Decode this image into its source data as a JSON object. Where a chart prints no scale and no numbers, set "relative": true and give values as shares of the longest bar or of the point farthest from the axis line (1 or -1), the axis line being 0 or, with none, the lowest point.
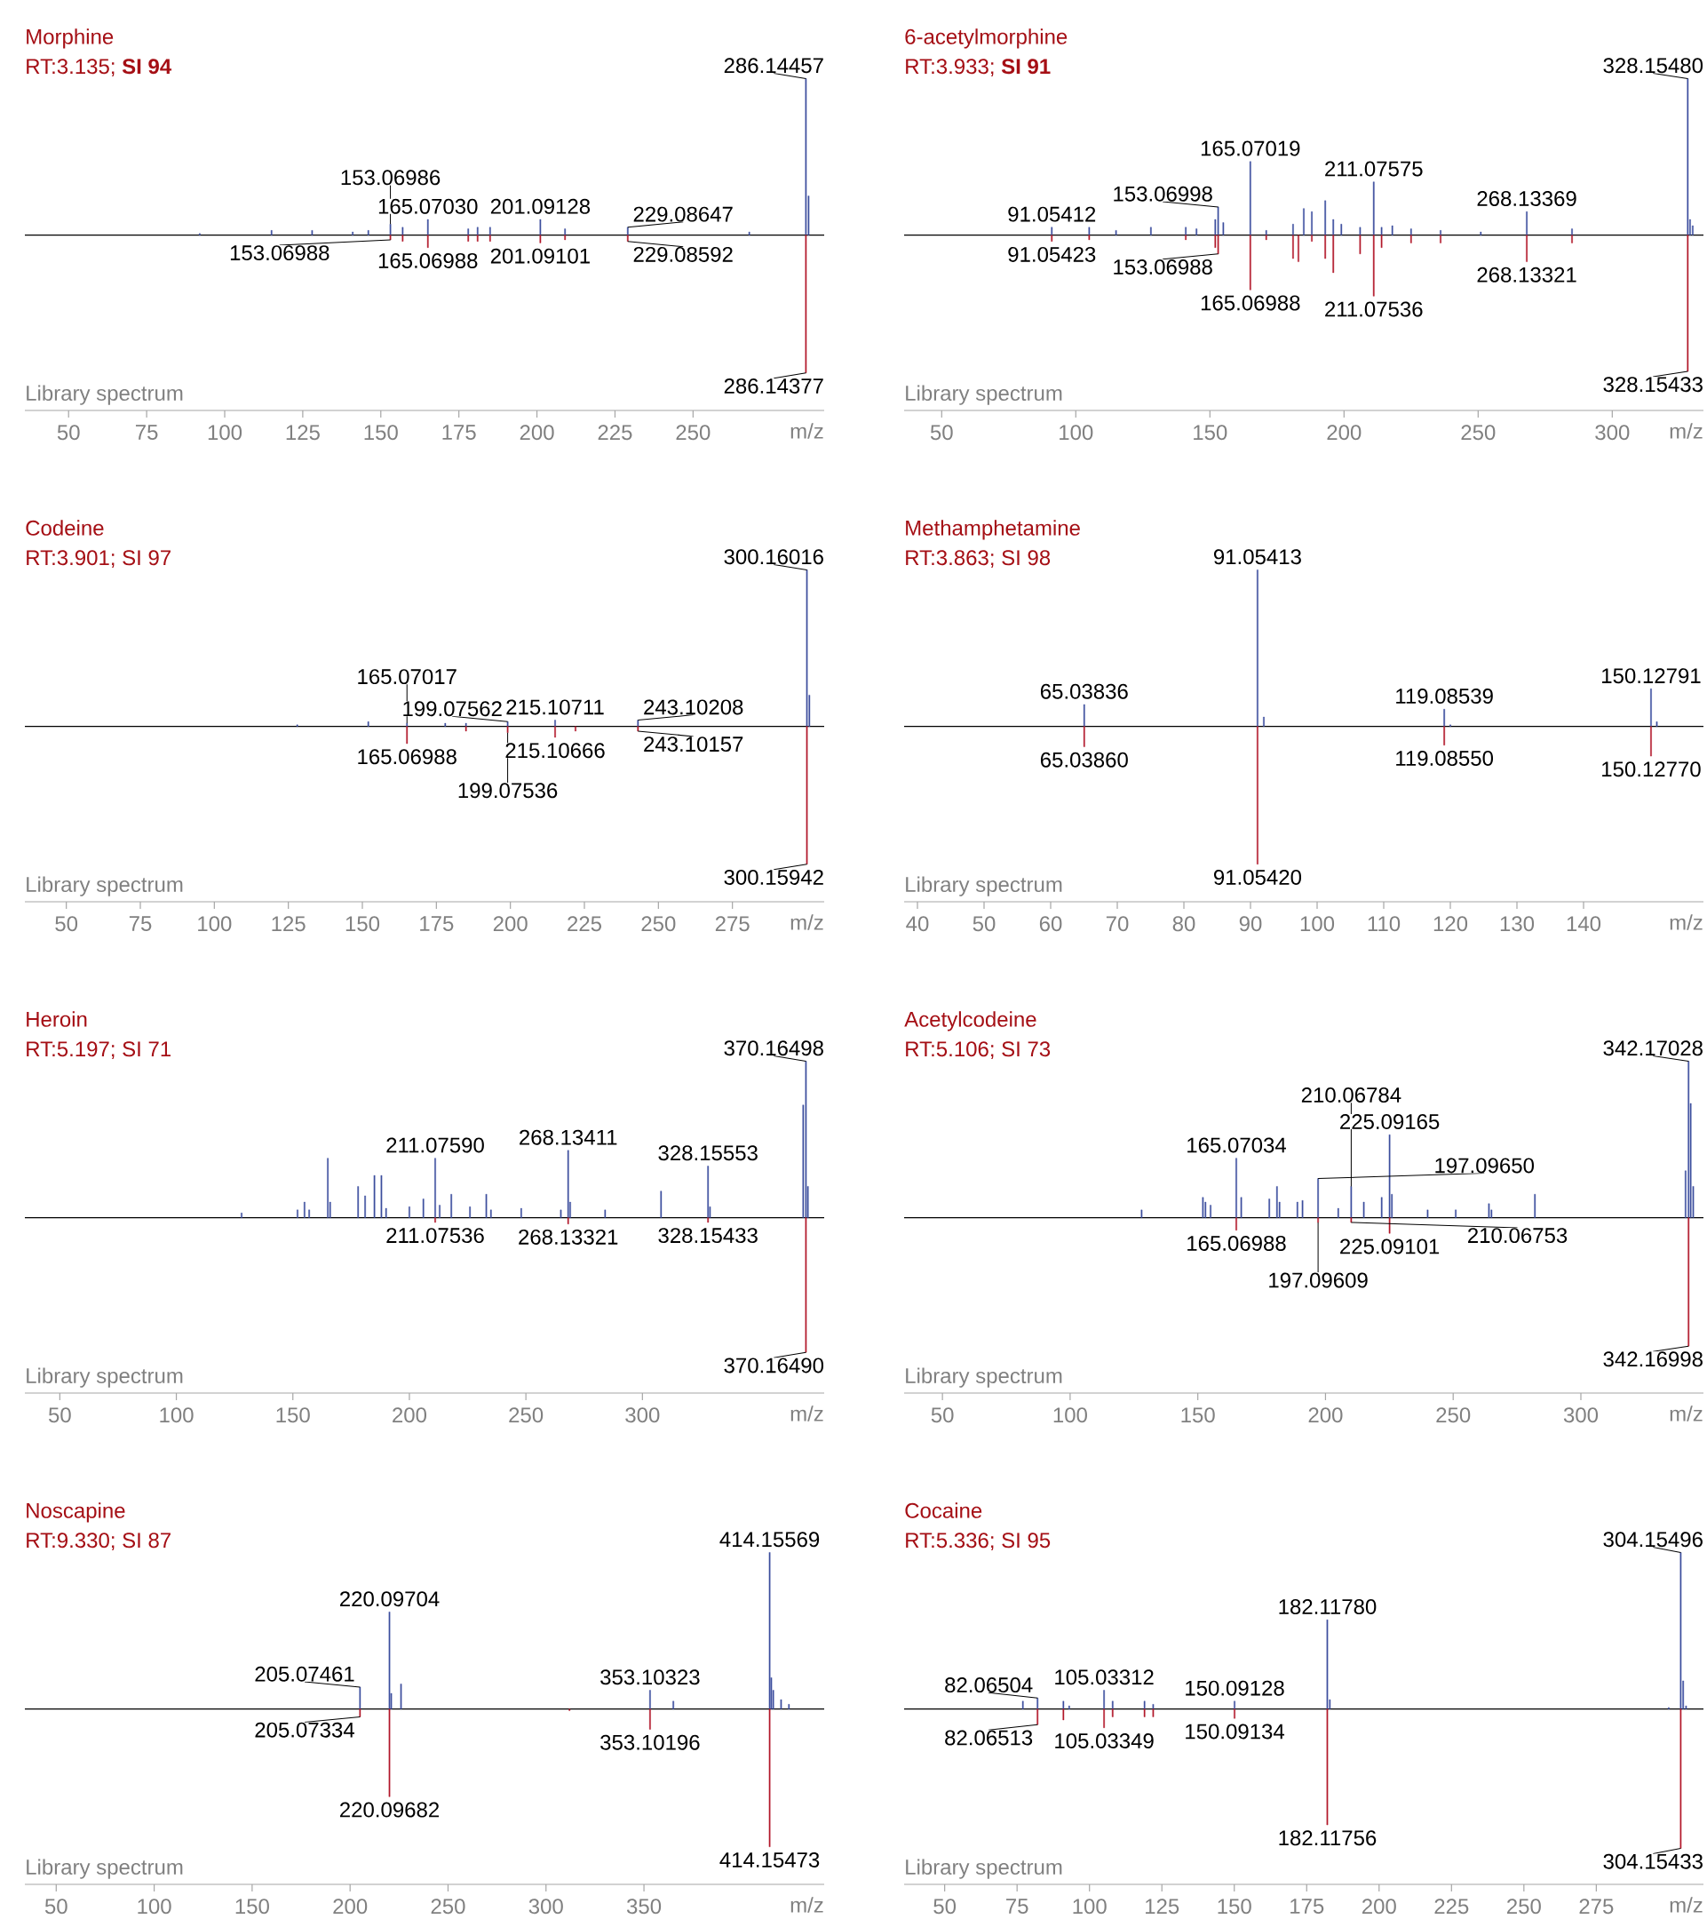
{
  "chart_data": [
    {
      "type": "bar",
      "title": "Morphine",
      "subtitle": "RT:3.135; **SI 94**",
      "xlabel": "m/z",
      "relative": true,
      "xlim": [
        36,
        292
      ],
      "xticks": [
        50,
        75,
        100,
        125,
        150,
        175,
        200,
        225,
        250
      ],
      "series": [
        {
          "color": "#3d4f9e",
          "x": [
            92,
            115,
            128,
            141,
            146,
            153.06986,
            157,
            165.0703,
            178,
            181,
            185,
            201.09128,
            209,
            229.08647,
            268,
            286.14457,
            287
          ],
          "values": [
            0.01,
            0.03,
            0.03,
            0.02,
            0.03,
            0.07,
            0.05,
            0.1,
            0.04,
            0.05,
            0.05,
            0.1,
            0.04,
            0.05,
            0.02,
            1.0,
            0.25
          ]
        },
        {
          "color": "#b2182b",
          "x": [
            153.06988,
            157,
            165.06988,
            178,
            181,
            185,
            201.09101,
            209,
            229.08592,
            286.14377
          ],
          "values": [
            -0.03,
            -0.04,
            -0.08,
            -0.04,
            -0.04,
            -0.04,
            -0.05,
            -0.03,
            -0.04,
            -0.88
          ]
        }
      ],
      "annotations": [
        "Library spectrum",
        {
          "text": "286.14457",
          "x": 286.14457,
          "y": 1.0
        },
        {
          "text": "153.06986",
          "x": 153.06986,
          "y": 0.07
        },
        {
          "text": "165.07030",
          "x": 165.0703,
          "y": 0.1
        },
        {
          "text": "201.09128",
          "x": 201.09128,
          "y": 0.1
        },
        {
          "text": "229.08647",
          "x": 229.08647,
          "y": 0.05
        },
        {
          "text": "153.06988",
          "x": 153.06988,
          "y": -0.03
        },
        {
          "text": "165.06988",
          "x": 165.06988,
          "y": -0.08
        },
        {
          "text": "201.09101",
          "x": 201.09101,
          "y": -0.05
        },
        {
          "text": "229.08592",
          "x": 229.08592,
          "y": -0.04
        },
        {
          "text": "286.14377",
          "x": 286.14377,
          "y": -0.88
        }
      ]
    },
    {
      "type": "bar",
      "title": "6-acetylmorphine",
      "subtitle": "RT:3.933; **SI 91**",
      "xlabel": "m/z",
      "relative": true,
      "xlim": [
        36,
        334
      ],
      "xticks": [
        50,
        100,
        150,
        200,
        250,
        300
      ],
      "series": [
        {
          "color": "#3d4f9e",
          "x": [
            91.05412,
            105,
            115,
            128,
            141,
            145,
            152,
            153.06998,
            155,
            165.07019,
            171,
            181,
            185,
            188,
            193,
            196,
            199,
            206,
            211.07575,
            214,
            218,
            225,
            236,
            251,
            268.13369,
            285,
            328.1548,
            329,
            330
          ],
          "values": [
            0.05,
            0.05,
            0.03,
            0.05,
            0.05,
            0.04,
            0.1,
            0.18,
            0.08,
            0.47,
            0.03,
            0.07,
            0.17,
            0.15,
            0.22,
            0.1,
            0.07,
            0.05,
            0.34,
            0.05,
            0.06,
            0.04,
            0.03,
            0.02,
            0.15,
            0.04,
            1.0,
            0.1,
            0.06
          ]
        },
        {
          "color": "#b2182b",
          "x": [
            91.05423,
            105,
            141,
            152,
            153.06988,
            165.06988,
            171,
            181,
            183,
            188,
            193,
            196,
            206,
            211.07536,
            214,
            225,
            236,
            268.13321,
            285,
            328.15433
          ],
          "values": [
            -0.04,
            -0.03,
            -0.03,
            -0.08,
            -0.12,
            -0.35,
            -0.03,
            -0.15,
            -0.17,
            -0.04,
            -0.15,
            -0.24,
            -0.12,
            -0.39,
            -0.08,
            -0.05,
            -0.05,
            -0.17,
            -0.05,
            -0.87
          ]
        }
      ],
      "annotations": [
        "Library spectrum",
        {
          "text": "328.15480",
          "x": 328.1548,
          "y": 1.0
        },
        {
          "text": "91.05412",
          "x": 91.05412,
          "y": 0.05
        },
        {
          "text": "153.06998",
          "x": 153.06998,
          "y": 0.18
        },
        {
          "text": "165.07019",
          "x": 165.07019,
          "y": 0.47
        },
        {
          "text": "211.07575",
          "x": 211.07575,
          "y": 0.34
        },
        {
          "text": "268.13369",
          "x": 268.13369,
          "y": 0.15
        },
        {
          "text": "91.05423",
          "x": 91.05423,
          "y": -0.04
        },
        {
          "text": "153.06988",
          "x": 153.06988,
          "y": -0.12
        },
        {
          "text": "165.06988",
          "x": 165.06988,
          "y": -0.35
        },
        {
          "text": "211.07536",
          "x": 211.07536,
          "y": -0.39
        },
        {
          "text": "268.13321",
          "x": 268.13321,
          "y": -0.17
        },
        {
          "text": "328.15433",
          "x": 328.15433,
          "y": -0.87
        }
      ]
    },
    {
      "type": "bar",
      "title": "Codeine",
      "subtitle": "RT:3.901; SI 97",
      "xlabel": "m/z",
      "relative": true,
      "xlim": [
        36,
        306
      ],
      "xticks": [
        50,
        75,
        100,
        125,
        150,
        175,
        200,
        225,
        250,
        275
      ],
      "series": [
        {
          "color": "#3d4f9e",
          "x": [
            128,
            152,
            165.07017,
            178,
            185,
            199.07562,
            215.10711,
            243.10208,
            300.16016,
            301
          ],
          "values": [
            0.01,
            0.03,
            0.02,
            0.02,
            0.02,
            0.03,
            0.04,
            0.04,
            1.0,
            0.2
          ]
        },
        {
          "color": "#b2182b",
          "x": [
            165.06988,
            185,
            199.07536,
            215.10666,
            222,
            243.10157,
            300.15942
          ],
          "values": [
            -0.11,
            -0.03,
            -0.04,
            -0.07,
            -0.03,
            -0.03,
            -0.88
          ]
        }
      ],
      "annotations": [
        "Library spectrum",
        {
          "text": "300.16016",
          "x": 300.16016,
          "y": 1.0
        },
        {
          "text": "165.07017",
          "x": 165.07017,
          "y": 0.02
        },
        {
          "text": "199.07562",
          "x": 199.07562,
          "y": 0.03
        },
        {
          "text": "215.10711",
          "x": 215.10711,
          "y": 0.04
        },
        {
          "text": "243.10208",
          "x": 243.10208,
          "y": 0.04
        },
        {
          "text": "165.06988",
          "x": 165.06988,
          "y": -0.11
        },
        {
          "text": "199.07536",
          "x": 199.07536,
          "y": -0.04
        },
        {
          "text": "215.10666",
          "x": 215.10666,
          "y": -0.07
        },
        {
          "text": "243.10157",
          "x": 243.10157,
          "y": -0.03
        },
        {
          "text": "300.15942",
          "x": 300.15942,
          "y": -0.88
        }
      ]
    },
    {
      "type": "bar",
      "title": "Methamphetamine",
      "subtitle": "RT:3.863; SI 98",
      "xlabel": "m/z",
      "relative": true,
      "xlim": [
        38,
        158
      ],
      "xticks": [
        40,
        50,
        60,
        70,
        80,
        90,
        100,
        110,
        120,
        130,
        140
      ],
      "series": [
        {
          "color": "#3d4f9e",
          "x": [
            65.03836,
            91.05413,
            92,
            119.08539,
            120,
            150.12791,
            151
          ],
          "values": [
            0.14,
            1.0,
            0.06,
            0.11,
            0.01,
            0.24,
            0.03
          ]
        },
        {
          "color": "#b2182b",
          "x": [
            65.0386,
            91.0542,
            119.0855,
            150.1277
          ],
          "values": [
            -0.13,
            -0.88,
            -0.12,
            -0.19
          ]
        }
      ],
      "annotations": [
        "Library spectrum",
        {
          "text": "91.05413",
          "x": 91.05413,
          "y": 1.0
        },
        {
          "text": "65.03836",
          "x": 65.03836,
          "y": 0.14
        },
        {
          "text": "119.08539",
          "x": 119.08539,
          "y": 0.11
        },
        {
          "text": "150.12791",
          "x": 150.12791,
          "y": 0.24
        },
        {
          "text": "65.03860",
          "x": 65.0386,
          "y": -0.13
        },
        {
          "text": "91.05420",
          "x": 91.0542,
          "y": -0.88
        },
        {
          "text": "119.08550",
          "x": 119.0855,
          "y": -0.12
        },
        {
          "text": "150.12770",
          "x": 150.1277,
          "y": -0.19
        }
      ]
    },
    {
      "type": "bar",
      "title": "Heroin",
      "subtitle": "RT:5.197; SI 71",
      "xlabel": "m/z",
      "relative": true,
      "xlim": [
        35,
        378
      ],
      "xticks": [
        50,
        100,
        150,
        200,
        250,
        300
      ],
      "series": [
        {
          "color": "#3d4f9e",
          "x": [
            128,
            152,
            155,
            157,
            165,
            166,
            178,
            181,
            185,
            188,
            190,
            200,
            206,
            211.0759,
            213,
            218,
            226,
            233,
            235,
            248,
            265,
            268.13411,
            269,
            284,
            308,
            328.15553,
            329,
            369,
            370.16498,
            371
          ],
          "values": [
            0.03,
            0.05,
            0.1,
            0.05,
            0.38,
            0.1,
            0.2,
            0.14,
            0.27,
            0.27,
            0.06,
            0.07,
            0.12,
            0.38,
            0.08,
            0.15,
            0.07,
            0.15,
            0.05,
            0.06,
            0.05,
            0.43,
            0.1,
            0.05,
            0.17,
            0.33,
            0.07,
            0.72,
            1.0,
            0.2
          ]
        },
        {
          "color": "#b2182b",
          "x": [
            211.07536,
            268.13321,
            328.15433,
            370.1649
          ],
          "values": [
            -0.03,
            -0.04,
            -0.03,
            -0.86
          ]
        }
      ],
      "annotations": [
        "Library spectrum",
        {
          "text": "370.16498",
          "x": 370.16498,
          "y": 1.0
        },
        {
          "text": "211.07590",
          "x": 211.0759,
          "y": 0.38
        },
        {
          "text": "268.13411",
          "x": 268.13411,
          "y": 0.43
        },
        {
          "text": "328.15553",
          "x": 328.15553,
          "y": 0.33
        },
        {
          "text": "211.07536",
          "x": 211.07536,
          "y": -0.03
        },
        {
          "text": "268.13321",
          "x": 268.13321,
          "y": -0.04
        },
        {
          "text": "328.15433",
          "x": 328.15433,
          "y": -0.03
        },
        {
          "text": "370.16490",
          "x": 370.1649,
          "y": -0.86
        }
      ]
    },
    {
      "type": "bar",
      "title": "Acetylcodeine",
      "subtitle": "RT:5.106; SI 73",
      "xlabel": "m/z",
      "relative": true,
      "xlim": [
        35,
        348
      ],
      "xticks": [
        50,
        100,
        150,
        200,
        250,
        300
      ],
      "series": [
        {
          "color": "#3d4f9e",
          "x": [
            128,
            152,
            153,
            155,
            165.07034,
            167,
            178,
            181,
            182,
            189,
            191,
            197.0965,
            205,
            210.06784,
            215,
            222,
            225.09165,
            226,
            240,
            251,
            264,
            265,
            282,
            341,
            342.17028,
            343,
            344
          ],
          "values": [
            0.05,
            0.13,
            0.1,
            0.08,
            0.38,
            0.13,
            0.12,
            0.2,
            0.1,
            0.1,
            0.11,
            0.25,
            0.06,
            0.2,
            0.1,
            0.13,
            0.53,
            0.15,
            0.05,
            0.05,
            0.09,
            0.05,
            0.15,
            0.3,
            1.0,
            0.73,
            0.2
          ]
        },
        {
          "color": "#b2182b",
          "x": [
            165.06988,
            197.09609,
            210.06753,
            225.09101,
            342.16998
          ],
          "values": [
            -0.08,
            -0.03,
            -0.03,
            -0.1,
            -0.82
          ]
        }
      ],
      "annotations": [
        "Library spectrum",
        {
          "text": "342.17028",
          "x": 342.17028,
          "y": 1.0
        },
        {
          "text": "165.07034",
          "x": 165.07034,
          "y": 0.38
        },
        {
          "text": "197.09650",
          "x": 197.0965,
          "y": 0.25
        },
        {
          "text": "210.06784",
          "x": 210.06784,
          "y": 0.2
        },
        {
          "text": "225.09165",
          "x": 225.09165,
          "y": 0.53
        },
        {
          "text": "165.06988",
          "x": 165.06988,
          "y": -0.08
        },
        {
          "text": "197.09609",
          "x": 197.09609,
          "y": -0.03
        },
        {
          "text": "210.06753",
          "x": 210.06753,
          "y": -0.03
        },
        {
          "text": "225.09101",
          "x": 225.09101,
          "y": -0.1
        },
        {
          "text": "342.16998",
          "x": 342.16998,
          "y": -0.82
        }
      ]
    },
    {
      "type": "bar",
      "title": "Noscapine",
      "subtitle": "RT:9.330; SI 87",
      "xlabel": "m/z",
      "relative": true,
      "xlim": [
        34,
        442
      ],
      "xticks": [
        50,
        100,
        150,
        200,
        250,
        300,
        350
      ],
      "series": [
        {
          "color": "#3d4f9e",
          "x": [
            205.07461,
            220.09704,
            221,
            226,
            353.10323,
            365,
            414.15569,
            415,
            416,
            420,
            424
          ],
          "values": [
            0.14,
            0.62,
            0.1,
            0.16,
            0.12,
            0.05,
            1.0,
            0.2,
            0.12,
            0.06,
            0.03
          ]
        },
        {
          "color": "#b2182b",
          "x": [
            205.07334,
            220.09682,
            312,
            353.10196,
            414.15473
          ],
          "values": [
            -0.05,
            -0.56,
            -0.01,
            -0.13,
            -0.88
          ]
        }
      ],
      "annotations": [
        "Library spectrum",
        {
          "text": "414.15569",
          "x": 414.15569,
          "y": 1.0
        },
        {
          "text": "205.07461",
          "x": 205.07461,
          "y": 0.14
        },
        {
          "text": "220.09704",
          "x": 220.09704,
          "y": 0.62
        },
        {
          "text": "353.10323",
          "x": 353.10323,
          "y": 0.12
        },
        {
          "text": "205.07334",
          "x": 205.07334,
          "y": -0.05
        },
        {
          "text": "220.09682",
          "x": 220.09682,
          "y": -0.56
        },
        {
          "text": "353.10196",
          "x": 353.10196,
          "y": -0.13
        },
        {
          "text": "414.15473",
          "x": 414.15473,
          "y": -0.88
        }
      ]
    },
    {
      "type": "bar",
      "title": "Cocaine",
      "subtitle": "RT:5.336; SI 95",
      "xlabel": "m/z",
      "relative": true,
      "xlim": [
        36,
        312
      ],
      "xticks": [
        50,
        75,
        100,
        125,
        150,
        175,
        200,
        225,
        250,
        275
      ],
      "series": [
        {
          "color": "#3d4f9e",
          "x": [
            77,
            82.06504,
            91,
            93,
            105.03312,
            108,
            119,
            122,
            150.09128,
            182.1178,
            183,
            300,
            304.15496,
            305,
            306
          ],
          "values": [
            0.05,
            0.07,
            0.05,
            0.02,
            0.12,
            0.05,
            0.05,
            0.03,
            0.05,
            0.57,
            0.06,
            0.01,
            1.0,
            0.18,
            0.02
          ]
        },
        {
          "color": "#b2182b",
          "x": [
            82.06513,
            91,
            105.03349,
            108,
            119,
            122,
            150.09134,
            182.11756,
            304.15433
          ],
          "values": [
            -0.1,
            -0.07,
            -0.12,
            -0.05,
            -0.05,
            -0.05,
            -0.06,
            -0.74,
            -0.89
          ]
        }
      ],
      "annotations": [
        "Library spectrum",
        {
          "text": "304.15496",
          "x": 304.15496,
          "y": 1.0
        },
        {
          "text": "82.06504",
          "x": 82.06504,
          "y": 0.07
        },
        {
          "text": "105.03312",
          "x": 105.03312,
          "y": 0.12
        },
        {
          "text": "150.09128",
          "x": 150.09128,
          "y": 0.05
        },
        {
          "text": "182.11780",
          "x": 182.1178,
          "y": 0.57
        },
        {
          "text": "82.06513",
          "x": 82.06513,
          "y": -0.1
        },
        {
          "text": "105.03349",
          "x": 105.03349,
          "y": -0.12
        },
        {
          "text": "150.09134",
          "x": 150.09134,
          "y": -0.06
        },
        {
          "text": "182.11756",
          "x": 182.11756,
          "y": -0.74
        },
        {
          "text": "304.15433",
          "x": 304.15433,
          "y": -0.89
        }
      ]
    }
  ]
}
